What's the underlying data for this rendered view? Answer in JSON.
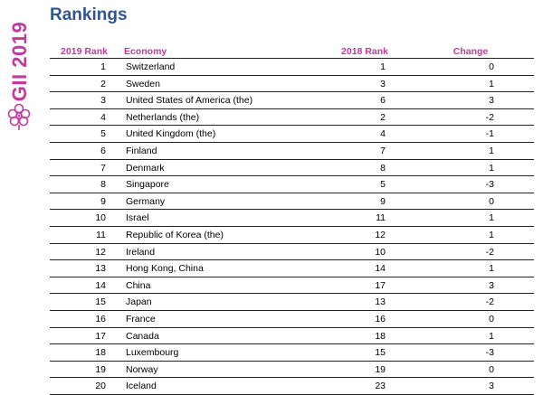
{
  "brand": {
    "side_text": "GII 2019",
    "accent_color": "#c4399c",
    "logo_icon": "flower-logo-icon"
  },
  "title": "Rankings",
  "title_color": "#2f5597",
  "table": {
    "headers": {
      "rank_2019": "2019 Rank",
      "economy": "Economy",
      "rank_2018": "2018 Rank",
      "change": "Change"
    },
    "rows": [
      {
        "rank": "1",
        "economy": "Switzerland",
        "rank2018": "1",
        "change": "0"
      },
      {
        "rank": "2",
        "economy": "Sweden",
        "rank2018": "3",
        "change": "1"
      },
      {
        "rank": "3",
        "economy": "United States of America (the)",
        "rank2018": "6",
        "change": "3"
      },
      {
        "rank": "4",
        "economy": "Netherlands (the)",
        "rank2018": "2",
        "change": "-2"
      },
      {
        "rank": "5",
        "economy": "United Kingdom (the)",
        "rank2018": "4",
        "change": "-1"
      },
      {
        "rank": "6",
        "economy": "Finland",
        "rank2018": "7",
        "change": "1"
      },
      {
        "rank": "7",
        "economy": "Denmark",
        "rank2018": "8",
        "change": "1"
      },
      {
        "rank": "8",
        "economy": "Singapore",
        "rank2018": "5",
        "change": "-3"
      },
      {
        "rank": "9",
        "economy": "Germany",
        "rank2018": "9",
        "change": "0"
      },
      {
        "rank": "10",
        "economy": "Israel",
        "rank2018": "11",
        "change": "1"
      },
      {
        "rank": "11",
        "economy": "Republic of Korea (the)",
        "rank2018": "12",
        "change": "1"
      },
      {
        "rank": "12",
        "economy": "Ireland",
        "rank2018": "10",
        "change": "-2"
      },
      {
        "rank": "13",
        "economy": "Hong Kong, China",
        "rank2018": "14",
        "change": "1"
      },
      {
        "rank": "14",
        "economy": "China",
        "rank2018": "17",
        "change": "3"
      },
      {
        "rank": "15",
        "economy": "Japan",
        "rank2018": "13",
        "change": "-2"
      },
      {
        "rank": "16",
        "economy": "France",
        "rank2018": "16",
        "change": "0"
      },
      {
        "rank": "17",
        "economy": "Canada",
        "rank2018": "18",
        "change": "1"
      },
      {
        "rank": "18",
        "economy": "Luxembourg",
        "rank2018": "15",
        "change": "-3"
      },
      {
        "rank": "19",
        "economy": "Norway",
        "rank2018": "19",
        "change": "0"
      },
      {
        "rank": "20",
        "economy": "Iceland",
        "rank2018": "23",
        "change": "3"
      }
    ]
  }
}
